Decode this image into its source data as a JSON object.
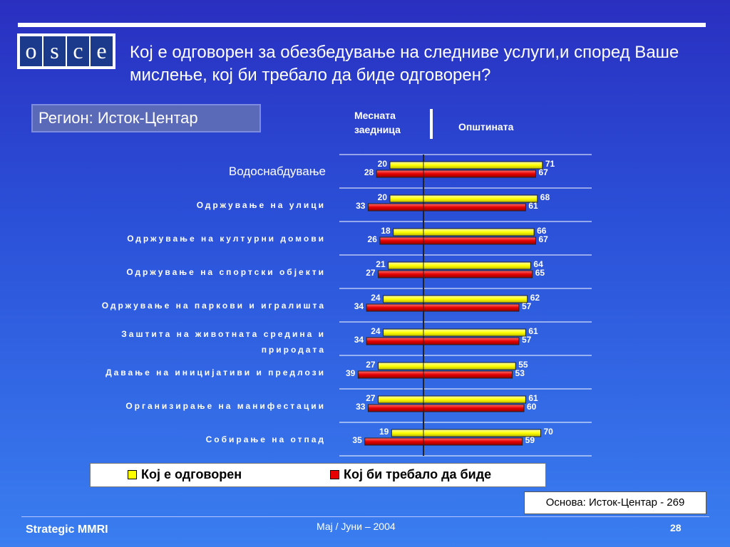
{
  "logo_letters": [
    "o",
    "s",
    "c",
    "e"
  ],
  "title": "Кој е одговорен за обезбедување на следниве услуги,и според Ваше мислење, кој би требало да биде одговорен?",
  "region": "Регион: Исток-Центар",
  "side_left": "Месната заедница",
  "side_right": "Општината",
  "chart_data": {
    "type": "bar",
    "orientation": "horizontal-diverging",
    "categories": [
      "Водоснабдување",
      "Одржување на улици",
      "Одржување на културни домови",
      "Одржување на спортски објекти",
      "Одржување на паркови и игралишта",
      "Заштита на животната средина и природата",
      "Давање на иницијативи и предлози",
      "Организирање на манифестации",
      "Собирање на отпад"
    ],
    "series": [
      {
        "name": "Кој е одговорен",
        "color": "#ffff00",
        "local": [
          20,
          20,
          18,
          21,
          24,
          24,
          27,
          27,
          19
        ],
        "municipality": [
          71,
          68,
          66,
          64,
          62,
          61,
          55,
          61,
          70
        ]
      },
      {
        "name": "Кој би требало да биде",
        "color": "#e60000",
        "local": [
          28,
          33,
          26,
          27,
          34,
          34,
          39,
          33,
          35
        ],
        "municipality": [
          67,
          61,
          67,
          65,
          57,
          57,
          53,
          60,
          59
        ]
      }
    ],
    "grid": true,
    "legend": "bottom"
  },
  "base": "Основа: Исток-Центар - 269",
  "footer": {
    "left": "Strategic MMRI",
    "center": "Мај / Јуни – 2004",
    "page": "28"
  }
}
